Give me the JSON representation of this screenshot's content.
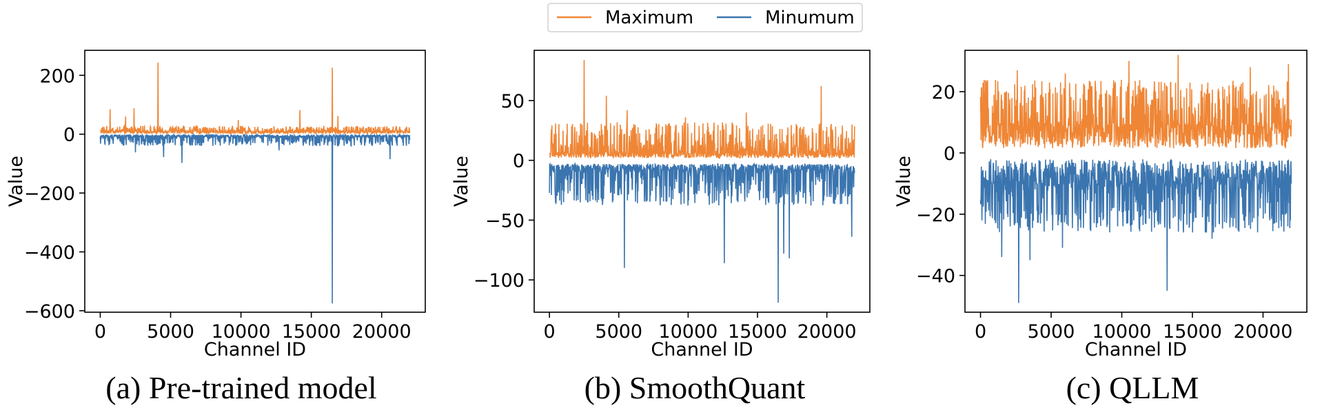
{
  "colors": {
    "maximum": "#ef8636",
    "minimum": "#3b75af"
  },
  "legend": [
    {
      "label": "Maximum",
      "color": "#ef8636"
    },
    {
      "label": "Minumum",
      "color": "#3b75af"
    }
  ],
  "chart_data": [
    {
      "type": "line",
      "caption": "(a) Pre-trained model",
      "xlabel": "Channel ID",
      "ylabel": "Value",
      "xlim": [
        -1100,
        23100
      ],
      "ylim": [
        -605,
        285
      ],
      "xticks": [
        0,
        5000,
        10000,
        15000,
        20000
      ],
      "xtick_labels": [
        "0",
        "5000",
        "10000",
        "15000",
        "20000"
      ],
      "yticks": [
        200,
        0,
        -200,
        -400,
        -600
      ],
      "ytick_labels": [
        "200",
        "0",
        "−200",
        "−400",
        "−600"
      ],
      "n_channels": 22016,
      "series": [
        {
          "name": "Maximum",
          "baseline_range": [
            2,
            10
          ],
          "noise_max": 28,
          "spikes": [
            [
              4100,
              243
            ],
            [
              16500,
              226
            ],
            [
              700,
              85
            ],
            [
              2400,
              88
            ],
            [
              14200,
              82
            ],
            [
              16900,
              62
            ],
            [
              9800,
              48
            ],
            [
              1800,
              60
            ]
          ]
        },
        {
          "name": "Minumum",
          "baseline_range": [
            -2,
            -8
          ],
          "noise_max": -40,
          "spikes": [
            [
              16500,
              -575
            ],
            [
              5800,
              -98
            ],
            [
              4500,
              -78
            ],
            [
              20600,
              -85
            ],
            [
              2500,
              -62
            ],
            [
              12700,
              -55
            ]
          ]
        }
      ]
    },
    {
      "type": "line",
      "caption": "(b) SmoothQuant",
      "xlabel": "Channel ID",
      "ylabel": "Value",
      "xlim": [
        -1100,
        23100
      ],
      "ylim": [
        -127,
        92
      ],
      "xticks": [
        0,
        5000,
        10000,
        15000,
        20000
      ],
      "xtick_labels": [
        "0",
        "5000",
        "10000",
        "15000",
        "20000"
      ],
      "yticks": [
        50,
        0,
        -50,
        -100
      ],
      "ytick_labels": [
        "50",
        "0",
        "−50",
        "−100"
      ],
      "n_channels": 22016,
      "series": [
        {
          "name": "Maximum",
          "baseline_range": [
            2,
            6
          ],
          "noise_max": 32,
          "spikes": [
            [
              2500,
              84
            ],
            [
              4100,
              54
            ],
            [
              19600,
              62
            ],
            [
              5600,
              42
            ],
            [
              14200,
              40
            ],
            [
              9800,
              36
            ]
          ]
        },
        {
          "name": "Minumum",
          "baseline_range": [
            -3,
            -8
          ],
          "noise_max": -38,
          "spikes": [
            [
              16500,
              -119
            ],
            [
              5400,
              -90
            ],
            [
              12600,
              -86
            ],
            [
              17300,
              -82
            ],
            [
              21800,
              -64
            ],
            [
              16900,
              -78
            ]
          ]
        }
      ]
    },
    {
      "type": "line",
      "caption": "(c) QLLM",
      "xlabel": "Channel ID",
      "ylabel": "Value",
      "xlim": [
        -1100,
        23100
      ],
      "ylim": [
        -52,
        33.5
      ],
      "xticks": [
        0,
        5000,
        10000,
        15000,
        20000
      ],
      "xtick_labels": [
        "0",
        "5000",
        "10000",
        "15000",
        "20000"
      ],
      "yticks": [
        20,
        0,
        -20,
        -40
      ],
      "ytick_labels": [
        "20",
        "0",
        "−20",
        "−40"
      ],
      "n_channels": 22016,
      "series": [
        {
          "name": "Maximum",
          "baseline_range": [
            1.5,
            9
          ],
          "noise_max": 24,
          "spikes": [
            [
              14000,
              32
            ],
            [
              10500,
              30
            ],
            [
              19100,
              28
            ],
            [
              2600,
              27
            ],
            [
              21800,
              29
            ],
            [
              6000,
              26
            ]
          ]
        },
        {
          "name": "Minumum",
          "baseline_range": [
            -2,
            -10
          ],
          "noise_max": -26,
          "spikes": [
            [
              2700,
              -49
            ],
            [
              13200,
              -45
            ],
            [
              3500,
              -35
            ],
            [
              1500,
              -34
            ],
            [
              5800,
              -31
            ],
            [
              16400,
              -28
            ]
          ]
        }
      ]
    }
  ]
}
